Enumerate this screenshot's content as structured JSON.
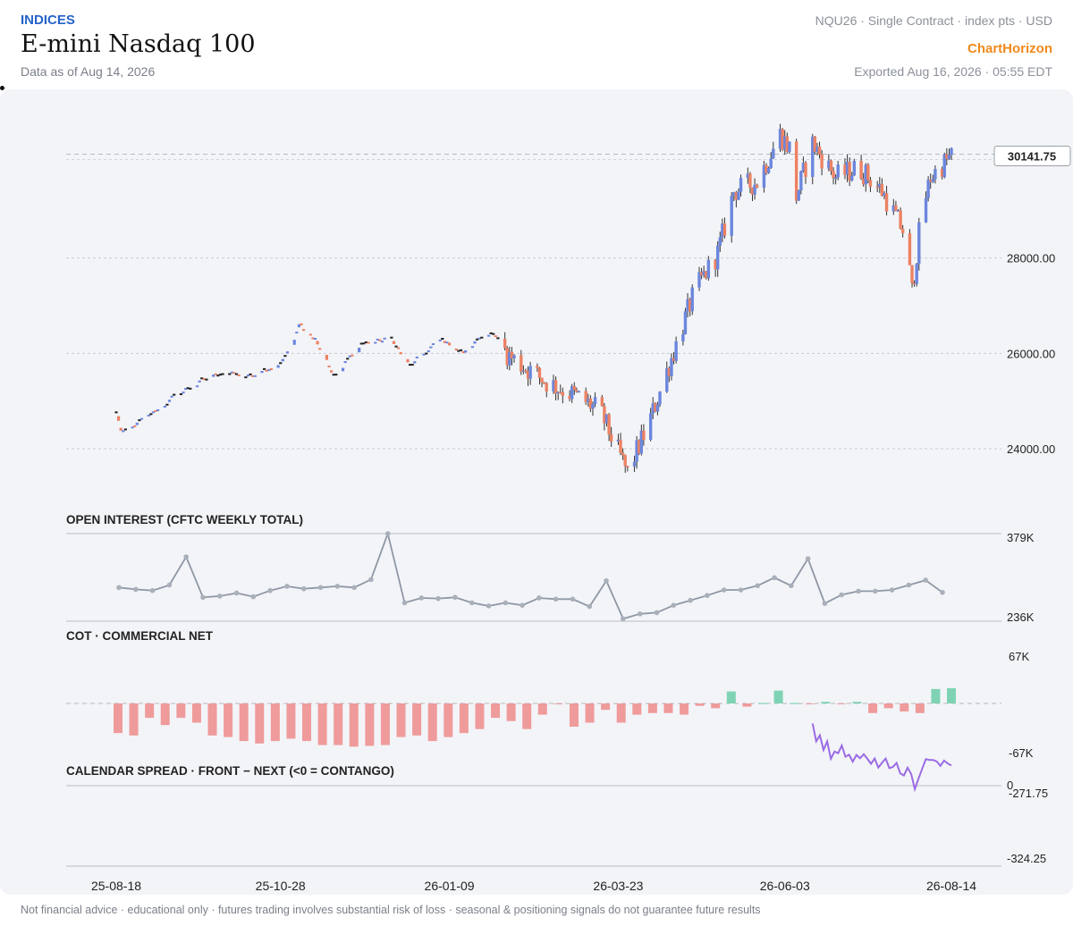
{
  "header": {
    "category": "INDICES",
    "title": "E-mini Nasdaq 100",
    "data_as_of": "Data as of Aug 14, 2026",
    "contract_info": "NQU26 · Single Contract · index pts · USD",
    "brand": "ChartHorizon",
    "exported": "Exported Aug 16, 2026 · 05:55 EDT"
  },
  "footer": "Not financial advice · educational only · futures trading involves substantial risk of loss · seasonal & positioning signals do not guarantee future results",
  "colors": {
    "up": "#6b86dd",
    "down": "#ec8263",
    "flat": "#222222",
    "oi_line": "#8e97a4",
    "cot_neg": "#ef9b9b",
    "cot_pos": "#7fd3b4",
    "spread_line": "#9a6be3",
    "grid": "#c9ccd3",
    "panel_bg": "#f3f4f8"
  },
  "chart_data": [
    {
      "type": "candlestick",
      "panel": "price",
      "y_ticks": [
        "24000.00",
        "26000.00",
        "28000.00"
      ],
      "last_price_label": "30141.75",
      "ylim": [
        23100,
        30900
      ],
      "x_tick_labels": [
        "25-08-18",
        "25-10-28",
        "26-01-09",
        "26-03-23",
        "26-06-03",
        "26-08-14"
      ],
      "x_range": [
        "2025-08-18",
        "2026-08-14"
      ],
      "anchor_closes": [
        {
          "date": "2025-08-18",
          "close": 24750
        },
        {
          "date": "2025-08-20",
          "close": 24300
        },
        {
          "date": "2025-09-01",
          "close": 24700
        },
        {
          "date": "2025-09-15",
          "close": 25200
        },
        {
          "date": "2025-10-01",
          "close": 25600
        },
        {
          "date": "2025-10-15",
          "close": 25500
        },
        {
          "date": "2025-10-28",
          "close": 25800
        },
        {
          "date": "2025-11-05",
          "close": 26600
        },
        {
          "date": "2025-11-12",
          "close": 26300
        },
        {
          "date": "2025-11-20",
          "close": 25500
        },
        {
          "date": "2025-12-01",
          "close": 26200
        },
        {
          "date": "2025-12-15",
          "close": 26300
        },
        {
          "date": "2025-12-22",
          "close": 25700
        },
        {
          "date": "2026-01-05",
          "close": 26300
        },
        {
          "date": "2026-01-15",
          "close": 26000
        },
        {
          "date": "2026-01-25",
          "close": 26500
        },
        {
          "date": "2026-02-05",
          "close": 25900
        },
        {
          "date": "2026-02-20",
          "close": 25400
        },
        {
          "date": "2026-03-05",
          "close": 25100
        },
        {
          "date": "2026-03-15",
          "close": 24800
        },
        {
          "date": "2026-03-27",
          "close": 23500
        },
        {
          "date": "2026-04-05",
          "close": 24500
        },
        {
          "date": "2026-04-15",
          "close": 25900
        },
        {
          "date": "2026-04-25",
          "close": 27300
        },
        {
          "date": "2026-05-05",
          "close": 28100
        },
        {
          "date": "2026-05-12",
          "close": 29400
        },
        {
          "date": "2026-05-22",
          "close": 29600
        },
        {
          "date": "2026-06-01",
          "close": 30600
        },
        {
          "date": "2026-06-05",
          "close": 30300
        },
        {
          "date": "2026-06-08",
          "close": 29300
        },
        {
          "date": "2026-06-15",
          "close": 30400
        },
        {
          "date": "2026-06-25",
          "close": 29700
        },
        {
          "date": "2026-07-05",
          "close": 29900
        },
        {
          "date": "2026-07-15",
          "close": 29400
        },
        {
          "date": "2026-07-25",
          "close": 28500
        },
        {
          "date": "2026-07-28",
          "close": 27300
        },
        {
          "date": "2026-08-01",
          "close": 28900
        },
        {
          "date": "2026-08-05",
          "close": 29700
        },
        {
          "date": "2026-08-14",
          "close": 30141.75
        }
      ]
    },
    {
      "type": "line",
      "panel": "open_interest",
      "title": "OPEN INTEREST (CFTC WEEKLY TOTAL)",
      "y_labels": [
        "379K",
        "236K"
      ],
      "ylim": [
        236,
        379
      ],
      "unit": "K contracts",
      "values": [
        291,
        288,
        286,
        295,
        341,
        275,
        277,
        282,
        276,
        286,
        293,
        289,
        291,
        293,
        291,
        304,
        379,
        266,
        274,
        273,
        275,
        266,
        261,
        266,
        262,
        274,
        272,
        272,
        260,
        302,
        240,
        248,
        250,
        262,
        270,
        278,
        287,
        287,
        294,
        307,
        294,
        338,
        265,
        279,
        285,
        285,
        287,
        295,
        303,
        283
      ]
    },
    {
      "type": "bar",
      "panel": "cot_commercial_net",
      "title": "COT · COMMERCIAL NET",
      "y_labels": [
        "67K",
        "-67K"
      ],
      "ylim": [
        -67,
        67
      ],
      "unit": "K contracts",
      "values": [
        -37,
        -40,
        -18,
        -27,
        -18,
        -24,
        -40,
        -42,
        -47,
        -50,
        -47,
        -44,
        -47,
        -52,
        -52,
        -54,
        -53,
        -52,
        -42,
        -40,
        -47,
        -42,
        -37,
        -32,
        -18,
        -22,
        -32,
        -14,
        -1,
        -29,
        -24,
        -8,
        -24,
        -14,
        -12,
        -12,
        -14,
        -3,
        -6,
        15,
        -4,
        0,
        16,
        0,
        -1,
        2,
        -1,
        2,
        -12,
        -6,
        -10,
        -12,
        18,
        19
      ]
    },
    {
      "type": "line",
      "panel": "calendar_spread",
      "title": "CALENDAR SPREAD · FRONT − NEXT (<0 = CONTANGO)",
      "y_labels": [
        "0",
        "-271.75",
        "-324.25"
      ],
      "x_range": [
        "2026-06-15",
        "2026-08-14"
      ],
      "values": [
        -324.0,
        -310.2,
        -314.8,
        -303.5,
        -310.1,
        -296.7,
        -302.3,
        -301.0,
        -306.9,
        -298.3,
        -299.8,
        -294.5,
        -299.6,
        -297.1,
        -300.2,
        -296.7,
        -292.8,
        -296.9,
        -289.9,
        -293.6,
        -296.8,
        -289.4,
        -290.4,
        -293.5,
        -285.4,
        -283.8,
        -289.8,
        -284.8,
        -273.3,
        -281.3,
        -288.9,
        -296.4,
        -295.7,
        -295.7,
        -294.6,
        -291.2,
        -295.3,
        -293.0,
        -291.5
      ]
    }
  ]
}
